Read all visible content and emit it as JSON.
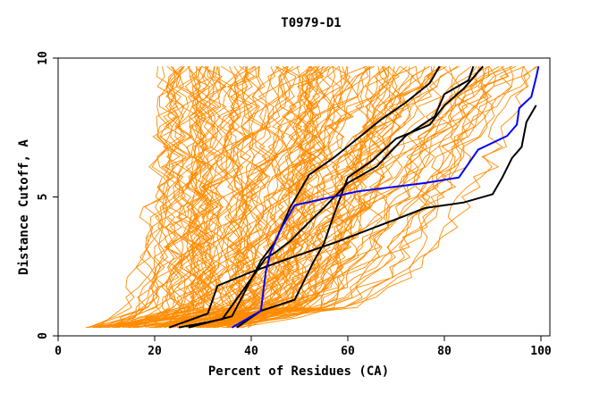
{
  "chart_data": {
    "type": "line",
    "title": "T0979-D1",
    "xlabel": "Percent of Residues (CA)",
    "ylabel": "Distance Cutoff, A",
    "xlim": [
      0,
      100
    ],
    "ylim": [
      0,
      10
    ],
    "xticks": [
      0,
      20,
      40,
      60,
      80,
      100
    ],
    "yticks": [
      0,
      5,
      10
    ],
    "background_curve_color": "#ff8c00",
    "background_curve_count": 140,
    "highlighted_series": [
      {
        "color": "#000000",
        "x": [
          23,
          31,
          33,
          40,
          48,
          53,
          58,
          64,
          70,
          76,
          84,
          90,
          92,
          94,
          96,
          97,
          99
        ],
        "y": [
          0.3,
          0.8,
          1.8,
          2.3,
          2.8,
          3.1,
          3.4,
          3.8,
          4.2,
          4.6,
          4.8,
          5.1,
          5.7,
          6.4,
          6.8,
          7.7,
          8.3
        ]
      },
      {
        "color": "#000000",
        "x": [
          25,
          34,
          41,
          43,
          45,
          48,
          52,
          55,
          60,
          66,
          72,
          78,
          80,
          85,
          86
        ],
        "y": [
          0.3,
          0.6,
          2.3,
          2.8,
          3.0,
          3.4,
          4.1,
          4.6,
          5.5,
          6.1,
          7.2,
          7.9,
          8.7,
          9.2,
          9.7
        ]
      },
      {
        "color": "#000000",
        "x": [
          37,
          42,
          49,
          51,
          53,
          55,
          57,
          60,
          65,
          70,
          77,
          80,
          84,
          88
        ],
        "y": [
          0.3,
          0.9,
          1.3,
          2.0,
          2.7,
          3.3,
          4.3,
          5.7,
          6.3,
          7.1,
          7.6,
          8.3,
          8.9,
          9.7
        ]
      },
      {
        "color": "#000000",
        "x": [
          27,
          36,
          42,
          45,
          48,
          52,
          57,
          62,
          67,
          72,
          77,
          79
        ],
        "y": [
          0.3,
          0.7,
          2.7,
          3.4,
          4.6,
          5.8,
          6.4,
          7.1,
          7.8,
          8.4,
          9.1,
          9.7
        ]
      },
      {
        "color": "#0000ff",
        "x": [
          36,
          42,
          43,
          44,
          46,
          49,
          62,
          76,
          83,
          87,
          93,
          95,
          95.5,
          98,
          99,
          99.5
        ],
        "y": [
          0.3,
          0.9,
          2.3,
          3.0,
          3.8,
          4.7,
          5.2,
          5.5,
          5.7,
          6.7,
          7.2,
          7.6,
          8.2,
          8.6,
          9.3,
          9.7
        ]
      }
    ],
    "grid": false,
    "legend": "none"
  }
}
